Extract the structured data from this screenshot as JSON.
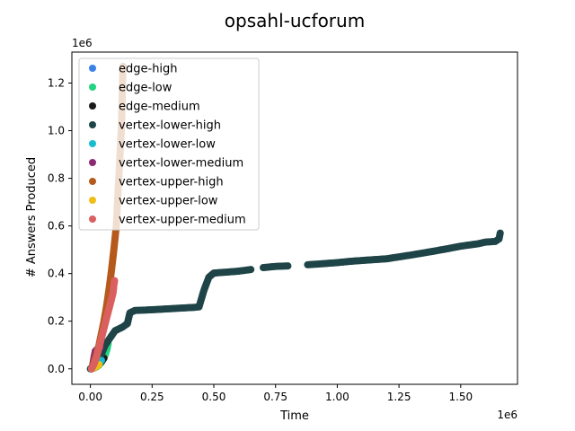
{
  "chart_data": {
    "type": "scatter",
    "title": "opsahl-ucforum",
    "xlabel": "Time",
    "ylabel": "# Answers Produced",
    "x_offset_label": "1e6",
    "y_offset_label": "1e6",
    "xlim": [
      -0.075,
      1.73
    ],
    "ylim": [
      -0.065,
      1.33
    ],
    "x_ticks": [
      0.0,
      0.25,
      0.5,
      0.75,
      1.0,
      1.25,
      1.5
    ],
    "x_tick_labels": [
      "0.00",
      "0.25",
      "0.50",
      "0.75",
      "1.00",
      "1.25",
      "1.50"
    ],
    "y_ticks": [
      0.0,
      0.2,
      0.4,
      0.6,
      0.8,
      1.0,
      1.2
    ],
    "y_tick_labels": [
      "0.0",
      "0.2",
      "0.4",
      "0.6",
      "0.8",
      "1.0",
      "1.2"
    ],
    "legend_position": "top-left",
    "series": [
      {
        "name": "edge-high",
        "color": "#3b82e8",
        "points": [
          [
            0.005,
            0.0
          ],
          [
            0.015,
            0.004
          ],
          [
            0.025,
            0.01
          ],
          [
            0.035,
            0.02
          ],
          [
            0.045,
            0.032
          ],
          [
            0.055,
            0.05
          ],
          [
            0.06,
            0.07
          ],
          [
            0.065,
            0.09
          ]
        ]
      },
      {
        "name": "edge-low",
        "color": "#22d37f",
        "points": [
          [
            0.005,
            0.0
          ],
          [
            0.015,
            0.003
          ],
          [
            0.025,
            0.008
          ],
          [
            0.035,
            0.015
          ],
          [
            0.045,
            0.028
          ],
          [
            0.055,
            0.045
          ],
          [
            0.062,
            0.065
          ],
          [
            0.068,
            0.085
          ],
          [
            0.072,
            0.105
          ]
        ]
      },
      {
        "name": "edge-medium",
        "color": "#1a1a1a",
        "points": [
          [
            0.005,
            0.0
          ],
          [
            0.015,
            0.004
          ],
          [
            0.025,
            0.01
          ],
          [
            0.035,
            0.02
          ],
          [
            0.045,
            0.03
          ],
          [
            0.055,
            0.045
          ]
        ]
      },
      {
        "name": "vertex-lower-high",
        "color": "#1e4448",
        "points": [
          [
            0.0,
            0.0
          ],
          [
            0.02,
            0.02
          ],
          [
            0.04,
            0.05
          ],
          [
            0.06,
            0.1
          ],
          [
            0.08,
            0.13
          ],
          [
            0.1,
            0.16
          ],
          [
            0.13,
            0.175
          ],
          [
            0.15,
            0.19
          ],
          [
            0.16,
            0.235
          ],
          [
            0.18,
            0.245
          ],
          [
            0.25,
            0.248
          ],
          [
            0.3,
            0.251
          ],
          [
            0.35,
            0.254
          ],
          [
            0.42,
            0.258
          ],
          [
            0.44,
            0.26
          ],
          [
            0.46,
            0.33
          ],
          [
            0.48,
            0.385
          ],
          [
            0.5,
            0.402
          ],
          [
            0.6,
            0.41
          ],
          [
            0.65,
            0.417
          ],
          [
            0.7,
            0.425
          ],
          [
            0.75,
            0.43
          ],
          [
            0.8,
            0.432
          ],
          [
            0.88,
            0.437
          ],
          [
            0.95,
            0.442
          ],
          [
            1.0,
            0.446
          ],
          [
            1.05,
            0.451
          ],
          [
            1.1,
            0.455
          ],
          [
            1.2,
            0.462
          ],
          [
            1.3,
            0.478
          ],
          [
            1.38,
            0.492
          ],
          [
            1.45,
            0.505
          ],
          [
            1.5,
            0.515
          ],
          [
            1.57,
            0.525
          ],
          [
            1.6,
            0.532
          ],
          [
            1.64,
            0.535
          ],
          [
            1.655,
            0.545
          ],
          [
            1.66,
            0.57
          ]
        ]
      },
      {
        "name": "vertex-lower-low",
        "color": "#17becf",
        "points": [
          [
            0.005,
            0.0
          ],
          [
            0.015,
            0.005
          ],
          [
            0.025,
            0.012
          ],
          [
            0.035,
            0.022
          ],
          [
            0.045,
            0.035
          ]
        ]
      },
      {
        "name": "vertex-lower-medium",
        "color": "#8b2a72",
        "points": [
          [
            0.005,
            0.0
          ],
          [
            0.01,
            0.02
          ],
          [
            0.015,
            0.05
          ],
          [
            0.02,
            0.075
          ],
          [
            0.03,
            0.085
          ],
          [
            0.04,
            0.09
          ]
        ]
      },
      {
        "name": "vertex-upper-high",
        "color": "#b55a1c",
        "points": [
          [
            0.005,
            0.0
          ],
          [
            0.015,
            0.03
          ],
          [
            0.025,
            0.06
          ],
          [
            0.035,
            0.1
          ],
          [
            0.045,
            0.15
          ],
          [
            0.055,
            0.2
          ],
          [
            0.065,
            0.26
          ],
          [
            0.075,
            0.33
          ],
          [
            0.085,
            0.41
          ],
          [
            0.095,
            0.5
          ],
          [
            0.105,
            0.6
          ],
          [
            0.11,
            0.7
          ],
          [
            0.115,
            0.8
          ],
          [
            0.12,
            0.9
          ],
          [
            0.125,
            1.0
          ],
          [
            0.128,
            1.1
          ],
          [
            0.13,
            1.2
          ],
          [
            0.132,
            1.27
          ]
        ]
      },
      {
        "name": "vertex-upper-low",
        "color": "#f0be16",
        "points": [
          [
            0.005,
            0.0
          ],
          [
            0.015,
            0.004
          ],
          [
            0.025,
            0.01
          ],
          [
            0.035,
            0.018
          ]
        ]
      },
      {
        "name": "vertex-upper-medium",
        "color": "#d9605f",
        "points": [
          [
            0.005,
            0.0
          ],
          [
            0.015,
            0.02
          ],
          [
            0.025,
            0.05
          ],
          [
            0.035,
            0.09
          ],
          [
            0.045,
            0.13
          ],
          [
            0.055,
            0.17
          ],
          [
            0.065,
            0.21
          ],
          [
            0.075,
            0.25
          ],
          [
            0.085,
            0.29
          ],
          [
            0.092,
            0.32
          ],
          [
            0.095,
            0.35
          ],
          [
            0.098,
            0.37
          ]
        ]
      }
    ]
  }
}
